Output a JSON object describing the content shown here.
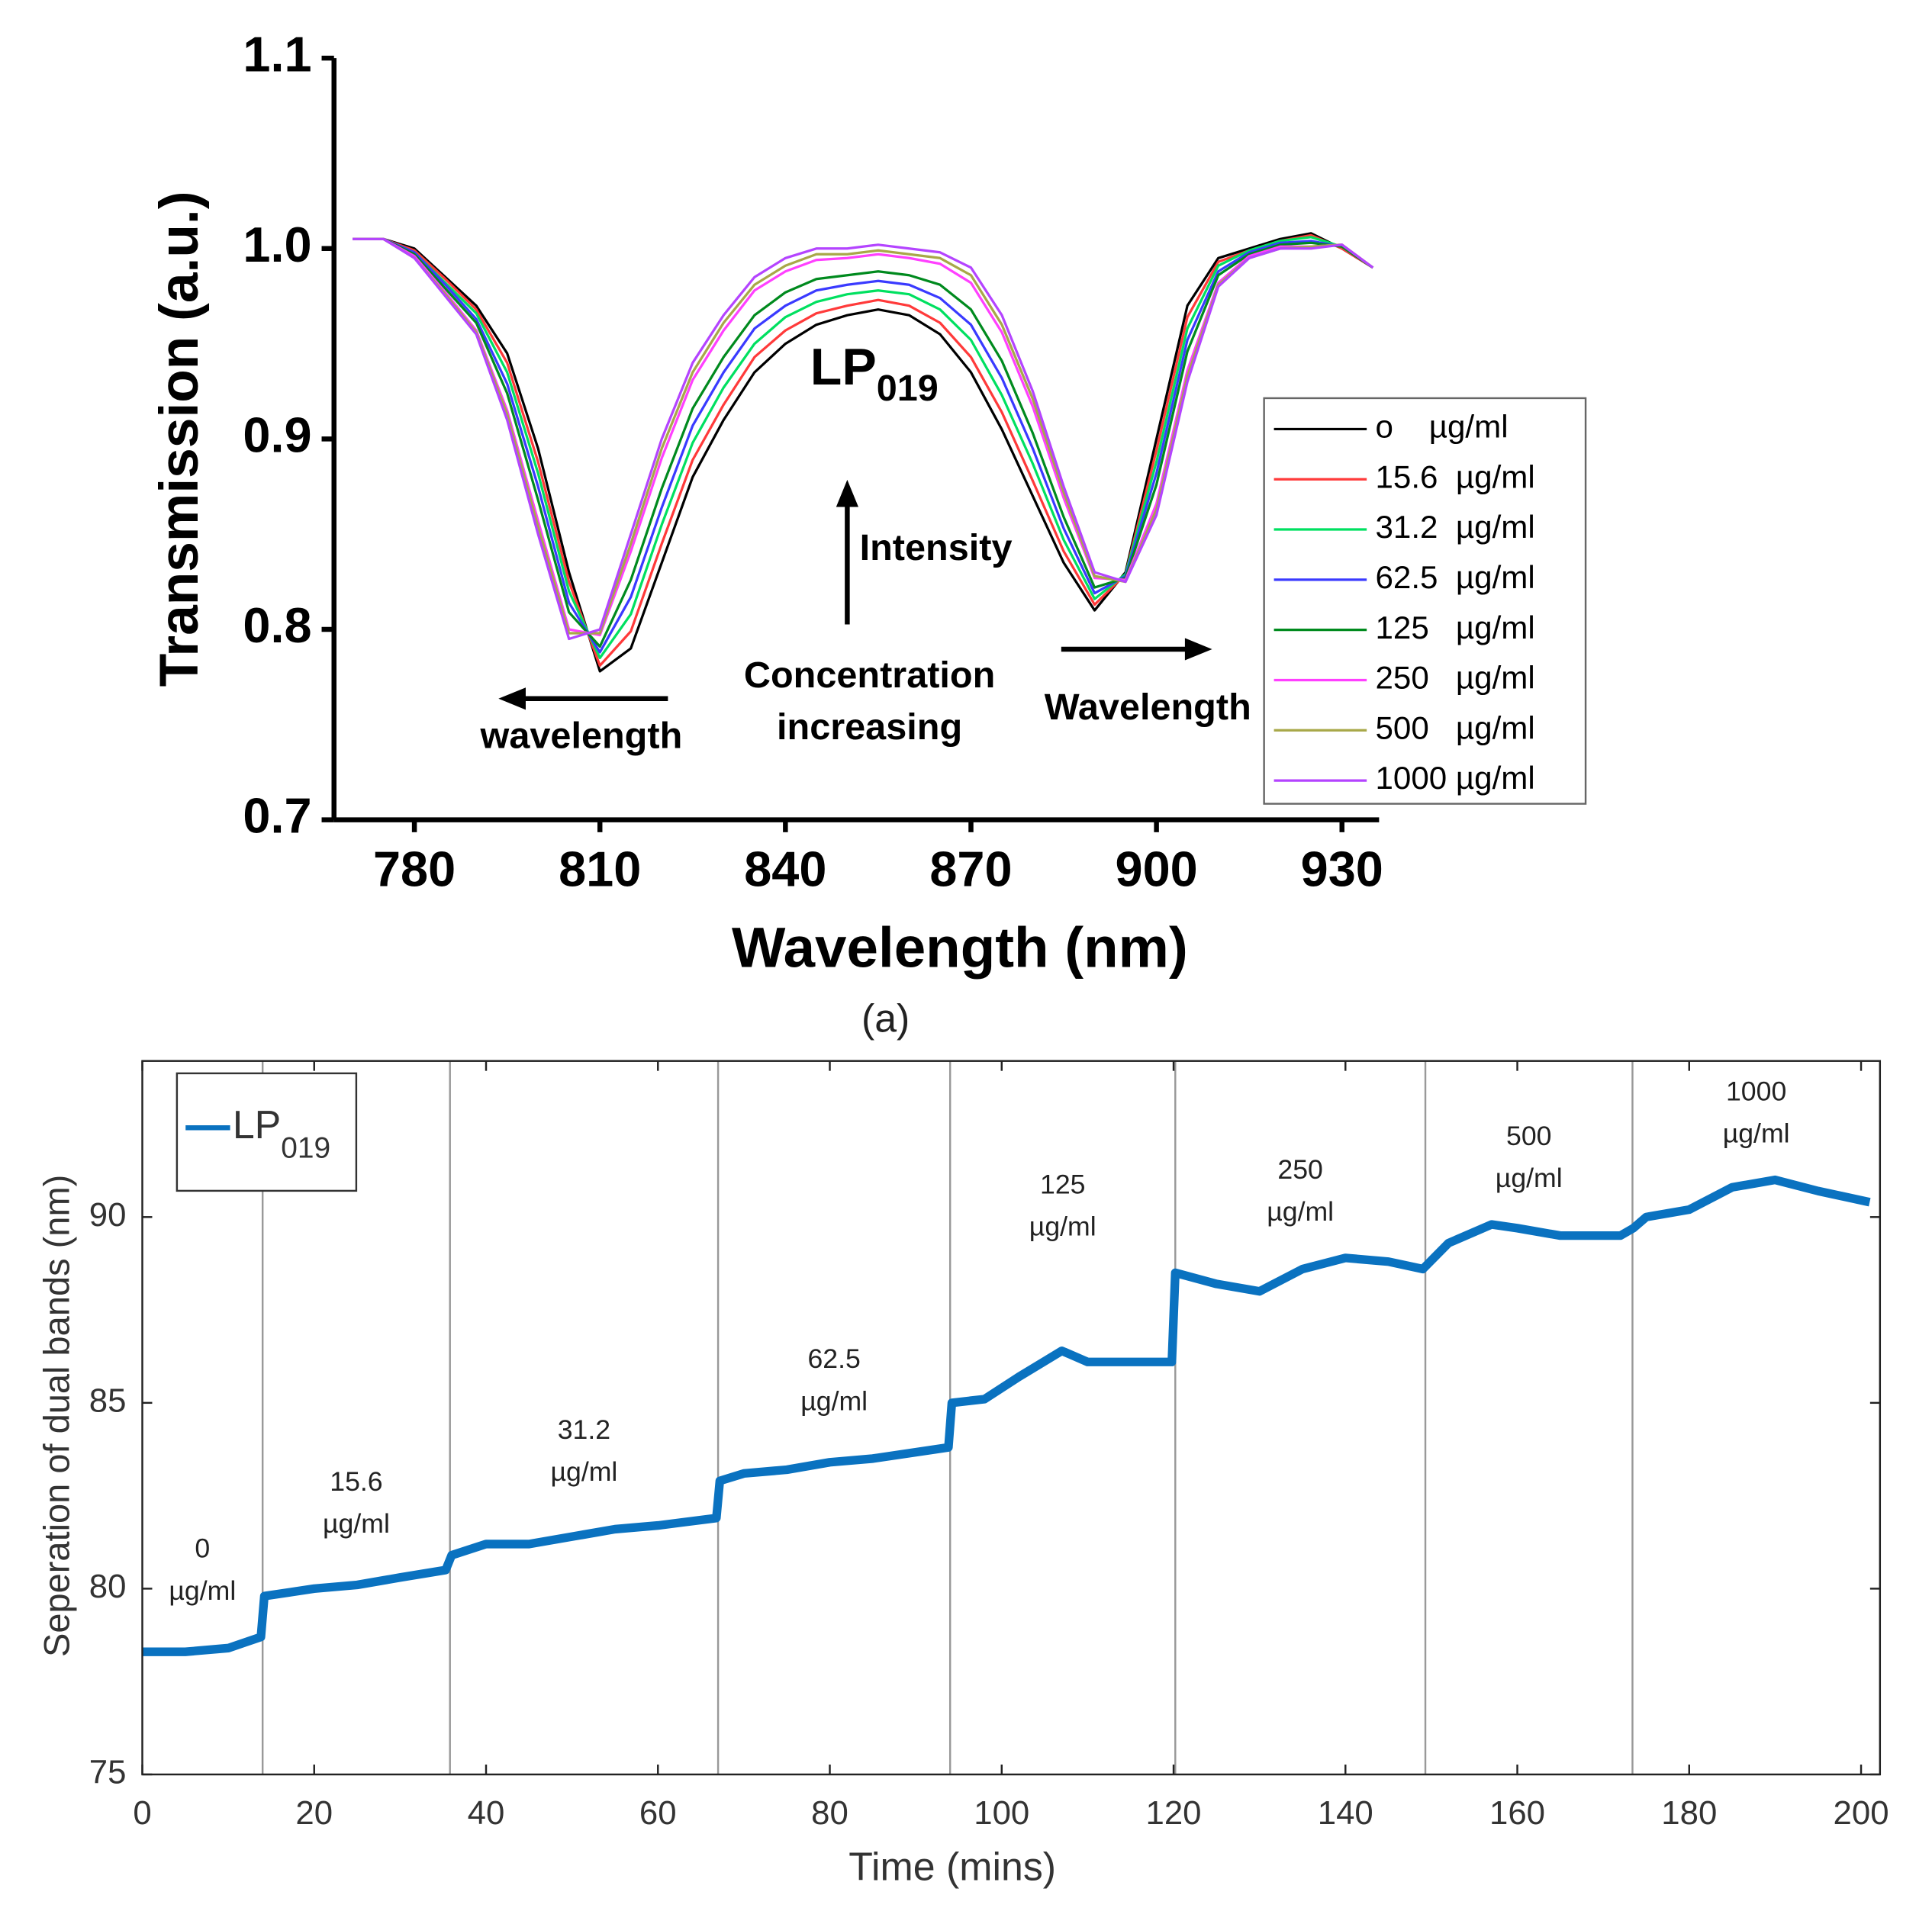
{
  "chart_data": [
    {
      "type": "line",
      "xlabel": "Wavelength (nm)",
      "ylabel": "Transmission (a.u.)",
      "caption": "(a)",
      "x": [
        770,
        775,
        780,
        785,
        790,
        795,
        800,
        805,
        810,
        815,
        820,
        825,
        830,
        835,
        840,
        845,
        850,
        855,
        860,
        865,
        870,
        875,
        880,
        885,
        890,
        895,
        900,
        905,
        910,
        915,
        920,
        925,
        930,
        935
      ],
      "xlim": [
        767,
        936
      ],
      "xticks": [
        780,
        810,
        840,
        870,
        900,
        930
      ],
      "ylim": [
        0.7,
        1.1
      ],
      "yticks": [
        0.7,
        0.8,
        0.9,
        {
          "value": 1,
          "label": "1.0"
        },
        1.1
      ],
      "series": [
        {
          "name": "o    µg/ml",
          "color": "#000000",
          "values": [
            1.005,
            1.005,
            1.0,
            0.985,
            0.97,
            0.945,
            0.895,
            0.83,
            0.778,
            0.79,
            0.835,
            0.88,
            0.91,
            0.935,
            0.95,
            0.96,
            0.965,
            0.968,
            0.965,
            0.955,
            0.935,
            0.905,
            0.87,
            0.835,
            0.81,
            0.83,
            0.9,
            0.97,
            0.995,
            1.0,
            1.005,
            1.008,
            1.0,
            0.99
          ]
        },
        {
          "name": "15.6  µg/ml",
          "color": "#ff3a3a",
          "values": [
            1.005,
            1.005,
            0.999,
            0.984,
            0.968,
            0.94,
            0.888,
            0.825,
            0.781,
            0.799,
            0.845,
            0.889,
            0.918,
            0.943,
            0.957,
            0.966,
            0.97,
            0.973,
            0.97,
            0.961,
            0.943,
            0.914,
            0.878,
            0.841,
            0.813,
            0.829,
            0.894,
            0.964,
            0.993,
            0.999,
            1.004,
            1.007,
            1.0,
            0.99
          ]
        },
        {
          "name": "31.2  µg/ml",
          "color": "#00e060",
          "values": [
            1.005,
            1.005,
            0.998,
            0.982,
            0.966,
            0.935,
            0.882,
            0.82,
            0.785,
            0.808,
            0.855,
            0.898,
            0.927,
            0.95,
            0.964,
            0.972,
            0.976,
            0.978,
            0.976,
            0.968,
            0.952,
            0.923,
            0.887,
            0.847,
            0.816,
            0.829,
            0.888,
            0.958,
            0.991,
            0.999,
            1.004,
            1.006,
            1.001,
            0.99
          ]
        },
        {
          "name": "62.5  µg/ml",
          "color": "#3a3aff",
          "values": [
            1.005,
            1.005,
            0.998,
            0.981,
            0.963,
            0.929,
            0.875,
            0.814,
            0.788,
            0.817,
            0.864,
            0.907,
            0.935,
            0.958,
            0.97,
            0.978,
            0.981,
            0.983,
            0.981,
            0.974,
            0.96,
            0.932,
            0.895,
            0.853,
            0.819,
            0.828,
            0.882,
            0.952,
            0.988,
            0.998,
            1.003,
            1.004,
            1.001,
            0.99
          ]
        },
        {
          "name": "125   µg/ml",
          "color": "#008a1e",
          "values": [
            1.005,
            1.005,
            0.997,
            0.979,
            0.961,
            0.924,
            0.868,
            0.809,
            0.791,
            0.826,
            0.874,
            0.916,
            0.943,
            0.965,
            0.977,
            0.984,
            0.986,
            0.988,
            0.986,
            0.981,
            0.968,
            0.941,
            0.903,
            0.859,
            0.822,
            0.827,
            0.876,
            0.946,
            0.986,
            0.997,
            1.002,
            1.003,
            1.001,
            0.99
          ]
        },
        {
          "name": "250   µg/ml",
          "color": "#ff40ff",
          "values": [
            1.005,
            1.005,
            0.996,
            0.977,
            0.957,
            0.915,
            0.857,
            0.8,
            0.797,
            0.841,
            0.89,
            0.931,
            0.957,
            0.978,
            0.988,
            0.994,
            0.995,
            0.997,
            0.995,
            0.992,
            0.982,
            0.956,
            0.917,
            0.869,
            0.827,
            0.826,
            0.866,
            0.936,
            0.982,
            0.996,
            1.001,
            1.001,
            1.002,
            0.99
          ]
        },
        {
          "name": "500   µg/ml",
          "color": "#a8a848",
          "values": [
            1.005,
            1.005,
            0.995,
            0.976,
            0.956,
            0.913,
            0.854,
            0.798,
            0.798,
            0.845,
            0.895,
            0.935,
            0.961,
            0.981,
            0.991,
            0.997,
            0.997,
            0.999,
            0.997,
            0.995,
            0.986,
            0.96,
            0.921,
            0.872,
            0.828,
            0.825,
            0.863,
            0.933,
            0.981,
            0.995,
            1.0,
            1.001,
            1.002,
            0.99
          ]
        },
        {
          "name": "1000 µg/ml",
          "color": "#b444ff",
          "values": [
            1.005,
            1.005,
            0.995,
            0.975,
            0.955,
            0.91,
            0.85,
            0.795,
            0.8,
            0.85,
            0.9,
            0.94,
            0.965,
            0.985,
            0.995,
            1.0,
            1.0,
            1.002,
            1.0,
            0.998,
            0.99,
            0.965,
            0.925,
            0.875,
            0.83,
            0.825,
            0.86,
            0.93,
            0.98,
            0.995,
            1.0,
            1.0,
            1.002,
            0.99
          ]
        }
      ],
      "annotations": [
        {
          "text": "LP",
          "sub": "019"
        },
        {
          "text": "Intensity"
        },
        {
          "text": "Concentration"
        },
        {
          "text": "increasing"
        },
        {
          "text": "wavelength"
        },
        {
          "text": "Wavelength"
        }
      ]
    },
    {
      "type": "line",
      "xlabel": "Time (mins)",
      "ylabel": "Seperation of dual bands (nm)",
      "x": [
        0,
        5,
        10,
        13.8,
        14.2,
        20,
        25,
        30,
        35.3,
        36,
        40,
        45,
        50,
        55,
        60,
        66.8,
        67.2,
        70,
        75,
        80,
        85,
        93.8,
        94.2,
        98,
        102,
        107,
        110,
        115,
        119.8,
        120.2,
        125,
        130,
        135,
        140,
        145,
        149,
        152,
        157,
        160,
        165,
        172,
        173.5,
        175,
        180,
        185,
        190,
        195,
        201
      ],
      "xlim": [
        0,
        202.2
      ],
      "xticks": [
        0,
        20,
        40,
        60,
        80,
        100,
        120,
        140,
        160,
        180,
        200
      ],
      "ylim": [
        75,
        94.2
      ],
      "yticks": [
        75,
        80,
        85,
        90
      ],
      "series": [
        {
          "name": "LP",
          "name_sub": "019",
          "color": "#0a72c0",
          "values": [
            78.3,
            78.3,
            78.4,
            78.7,
            79.8,
            80.0,
            80.1,
            80.3,
            80.5,
            80.9,
            81.2,
            81.2,
            81.4,
            81.6,
            81.7,
            81.9,
            82.9,
            83.1,
            83.2,
            83.4,
            83.5,
            83.8,
            85.0,
            85.1,
            85.7,
            86.4,
            86.1,
            86.1,
            86.1,
            88.5,
            88.2,
            88.0,
            88.6,
            88.9,
            88.8,
            88.6,
            89.3,
            89.8,
            89.7,
            89.5,
            89.5,
            89.7,
            90.0,
            90.2,
            90.8,
            91.0,
            90.7,
            90.4
          ]
        }
      ],
      "markers": [
        14,
        35.8,
        67,
        94,
        120.2,
        149.3,
        173.4
      ],
      "segment_labels": [
        [
          "0",
          "µg/ml"
        ],
        [
          "15.6",
          "µg/ml"
        ],
        [
          "31.2",
          "µg/ml"
        ],
        [
          "62.5",
          "µg/ml"
        ],
        [
          "125",
          "µg/ml"
        ],
        [
          "250",
          "µg/ml"
        ],
        [
          "500",
          "µg/ml"
        ],
        [
          "1000",
          "µg/ml"
        ]
      ]
    }
  ]
}
